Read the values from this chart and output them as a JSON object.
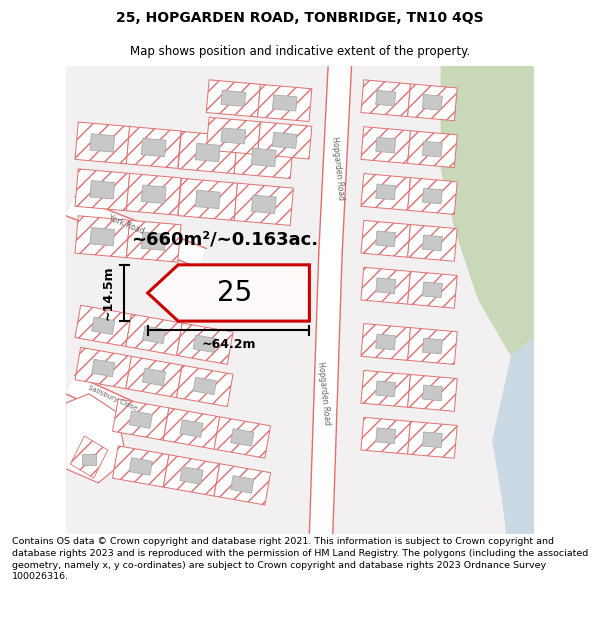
{
  "title": "25, HOPGARDEN ROAD, TONBRIDGE, TN10 4QS",
  "subtitle": "Map shows position and indicative extent of the property.",
  "footer": "Contains OS data © Crown copyright and database right 2021. This information is subject to Crown copyright and database rights 2023 and is reproduced with the permission of HM Land Registry. The polygons (including the associated geometry, namely x, y co-ordinates) are subject to Crown copyright and database rights 2023 Ordnance Survey 100026316.",
  "map_bg": "#f2f0f0",
  "road_color": "#e07070",
  "road_fill": "#ffffff",
  "building_fill": "#c8c8c8",
  "building_edge": "#aaaaaa",
  "highlight_color": "#cc0000",
  "green_area": "#c8d8b8",
  "water_color": "#c0d4e0",
  "area_label": "~660m²/~0.163ac.",
  "number_label": "25",
  "width_label": "~64.2m",
  "height_label": "~14.5m",
  "title_fontsize": 10,
  "subtitle_fontsize": 8.5,
  "footer_fontsize": 6.8,
  "label_fontsize": 13,
  "number_fontsize": 20
}
